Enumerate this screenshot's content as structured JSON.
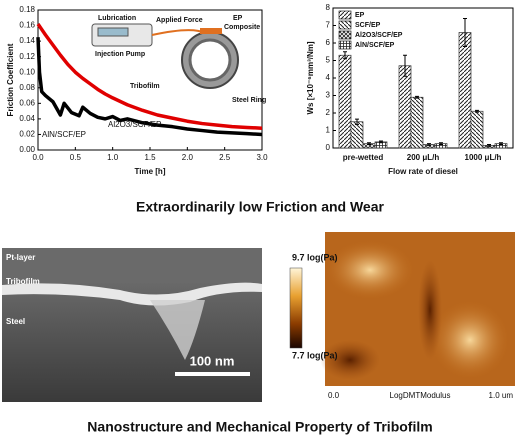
{
  "chart_data": [
    {
      "type": "line",
      "y_label": "Friction Coefficient",
      "x_label": "Time [h]",
      "xlim": [
        0,
        3
      ],
      "xticks": [
        {
          "value": 0,
          "label": "0.0"
        },
        {
          "value": 0.5,
          "label": "0.5"
        },
        {
          "value": 1,
          "label": "1.0"
        },
        {
          "value": 1.5,
          "label": "1.5"
        },
        {
          "value": 2,
          "label": "2.0"
        },
        {
          "value": 2.5,
          "label": "2.5"
        },
        {
          "value": 3,
          "label": "3.0"
        }
      ],
      "ylim": [
        0,
        0.18
      ],
      "yticks": [
        {
          "value": 0,
          "label": "0.00"
        },
        {
          "value": 0.02,
          "label": "0.02"
        },
        {
          "value": 0.04,
          "label": "0.04"
        },
        {
          "value": 0.06,
          "label": "0.06"
        },
        {
          "value": 0.08,
          "label": "0.08"
        },
        {
          "value": 0.1,
          "label": "0.10"
        },
        {
          "value": 0.12,
          "label": "0.12"
        },
        {
          "value": 0.14,
          "label": "0.14"
        },
        {
          "value": 0.16,
          "label": "0.16"
        },
        {
          "value": 0.18,
          "label": "0.18"
        }
      ],
      "series": [
        {
          "name": "Al2O3/SCF/EP",
          "color": "#e00000",
          "x": [
            0,
            0.05,
            0.1,
            0.2,
            0.3,
            0.4,
            0.5,
            0.6,
            0.7,
            0.8,
            0.9,
            1.0,
            1.2,
            1.4,
            1.6,
            1.8,
            2.0,
            2.2,
            2.4,
            2.6,
            2.8,
            3.0
          ],
          "values": [
            0.162,
            0.155,
            0.148,
            0.135,
            0.122,
            0.11,
            0.1,
            0.092,
            0.085,
            0.078,
            0.072,
            0.067,
            0.058,
            0.051,
            0.045,
            0.041,
            0.037,
            0.034,
            0.032,
            0.03,
            0.029,
            0.028
          ]
        },
        {
          "name": "AlN/SCF/EP",
          "color": "#000000",
          "x": [
            0,
            0.02,
            0.05,
            0.1,
            0.2,
            0.3,
            0.35,
            0.45,
            0.55,
            0.6,
            0.7,
            0.8,
            0.9,
            1.0,
            1.1,
            1.2,
            1.4,
            1.6,
            1.8,
            2.0,
            2.2,
            2.4,
            2.6,
            2.8,
            3.0
          ],
          "values": [
            0.145,
            0.1,
            0.075,
            0.07,
            0.062,
            0.045,
            0.06,
            0.048,
            0.044,
            0.055,
            0.047,
            0.042,
            0.04,
            0.043,
            0.038,
            0.04,
            0.035,
            0.032,
            0.03,
            0.027,
            0.025,
            0.023,
            0.022,
            0.021,
            0.02
          ]
        }
      ],
      "inset_labels": [
        "Lubrication",
        "Injection Pump",
        "Applied Force",
        "EP",
        "Composite",
        "Tribofilm",
        "Steel Ring"
      ]
    },
    {
      "type": "bar",
      "y_label": "Ws [×10⁻⁶mm³/Nm]",
      "x_label": "Flow rate of diesel",
      "categories": [
        "pre-wetted",
        "200 μL/h",
        "1000 μL/h"
      ],
      "ylim": [
        0,
        8
      ],
      "yticks": [
        0,
        1,
        2,
        3,
        4,
        5,
        6,
        7,
        8
      ],
      "legend": "upper-left",
      "series": [
        {
          "name": "EP",
          "color": "#333333",
          "values": [
            5.3,
            4.7,
            6.6
          ],
          "errors": [
            0.2,
            0.6,
            0.8
          ]
        },
        {
          "name": "SCF/EP",
          "color": "#333333",
          "values": [
            1.5,
            2.9,
            2.1
          ],
          "errors": [
            0.15,
            0.05,
            0.05
          ]
        },
        {
          "name": "Al2O3/SCF/EP",
          "color": "#333333",
          "values": [
            0.25,
            0.2,
            0.15
          ],
          "errors": [
            0.05,
            0.05,
            0.05
          ]
        },
        {
          "name": "AlN/SCF/EP",
          "color": "#333333",
          "values": [
            0.35,
            0.25,
            0.25
          ],
          "errors": [
            0.05,
            0.05,
            0.05
          ]
        }
      ]
    }
  ],
  "caption_top": "Extraordinarily low Friction and Wear",
  "sem": {
    "labels": [
      "Pt-layer",
      "Tribofilm",
      "Steel"
    ],
    "scale": "100 nm"
  },
  "colorbar": {
    "max": "9.7 log(Pa)",
    "min": "7.7 log(Pa)"
  },
  "afm": {
    "left": "0.0",
    "center": "LogDMTModulus",
    "right": "1.0 um"
  },
  "caption_bottom": "Nanostructure and Mechanical Property of Tribofilm"
}
